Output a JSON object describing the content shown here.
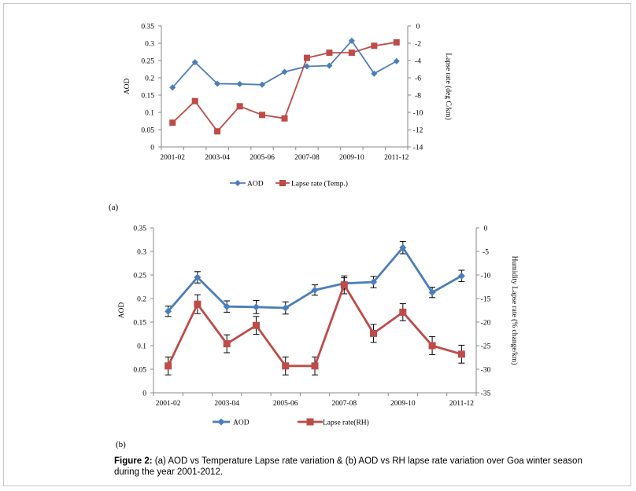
{
  "caption": {
    "label": "Figure 2:",
    "text": " (a) AOD vs Temperature Lapse rate variation & (b) AOD vs RH lapse rate variation over Goa winter season during the year 2001-2012."
  },
  "chart_data": [
    {
      "type": "line",
      "panel_label": "(a)",
      "ylabel": "AOD",
      "y2label": "Lapse rate (deg C/km)",
      "ylim": [
        0,
        0.35
      ],
      "y2lim": [
        -14,
        0
      ],
      "yticks": [
        "0",
        "0.05",
        "0.1",
        "0.15",
        "0.2",
        "0.25",
        "0.3",
        "0.35"
      ],
      "y2ticks": [
        "0",
        "-2",
        "-4",
        "-6",
        "-8",
        "-10",
        "-12",
        "-14"
      ],
      "x": [
        1,
        2,
        3,
        4,
        5,
        6,
        7,
        8,
        9,
        10,
        11
      ],
      "xticklabels": [
        {
          "x": 0.5,
          "label": "2001-02"
        },
        {
          "x": 2.5,
          "label": "2003-04"
        },
        {
          "x": 4.5,
          "label": "2005-06"
        },
        {
          "x": 6.5,
          "label": "2007-08"
        },
        {
          "x": 8.5,
          "label": "2009-10"
        },
        {
          "x": 10.5,
          "label": "2011-12"
        }
      ],
      "series": [
        {
          "name": "AOD",
          "axis": "left",
          "color": "#4a7ebb",
          "marker": "diamond",
          "values": [
            0.172,
            0.245,
            0.183,
            0.182,
            0.18,
            0.217,
            0.233,
            0.235,
            0.307,
            0.212,
            0.248
          ]
        },
        {
          "name": "Lapse rate (Temp.)",
          "axis": "right",
          "color": "#be4b48",
          "marker": "square",
          "values": [
            -11.2,
            -8.7,
            -12.2,
            -9.3,
            -10.3,
            -10.7,
            -3.7,
            -3.1,
            -3.1,
            -2.3,
            -1.9
          ]
        }
      ],
      "legend": "bottom"
    },
    {
      "type": "line",
      "panel_label": "(b)",
      "ylabel": "AOD",
      "y2label": "Humidity Lapse rate (% change/km)",
      "ylim": [
        0,
        0.35
      ],
      "y2lim": [
        -35,
        0
      ],
      "yticks": [
        "0",
        "0.05",
        "0.1",
        "0.15",
        "0.2",
        "0.25",
        "0.3",
        "0.35"
      ],
      "y2ticks": [
        "0",
        "-5",
        "-10",
        "-15",
        "-20",
        "-25",
        "-30",
        "-35"
      ],
      "x": [
        1,
        2,
        3,
        4,
        5,
        6,
        7,
        8,
        9,
        10,
        11
      ],
      "xticklabels": [
        {
          "x": 0.5,
          "label": "2001-02"
        },
        {
          "x": 2.5,
          "label": "2003-04"
        },
        {
          "x": 4.5,
          "label": "2005-06"
        },
        {
          "x": 6.5,
          "label": "2007-08"
        },
        {
          "x": 8.5,
          "label": "2009-10"
        },
        {
          "x": 10.5,
          "label": "2011-12"
        }
      ],
      "series": [
        {
          "name": "AOD",
          "axis": "left",
          "color": "#4a7ebb",
          "marker": "diamond",
          "values": [
            0.173,
            0.245,
            0.183,
            0.182,
            0.18,
            0.218,
            0.232,
            0.235,
            0.308,
            0.213,
            0.248
          ],
          "error": [
            0.011,
            0.012,
            0.012,
            0.014,
            0.013,
            0.011,
            0.012,
            0.012,
            0.013,
            0.011,
            0.012
          ]
        },
        {
          "name": "Lapse rate(RH)",
          "axis": "right",
          "color": "#be4b48",
          "marker": "square",
          "values": [
            -29.3,
            -16.2,
            -24.6,
            -20.7,
            -29.3,
            -29.3,
            -12.1,
            -22.4,
            -17.9,
            -25.0,
            -26.8
          ],
          "error": [
            1.9,
            2.0,
            1.9,
            1.9,
            1.9,
            1.9,
            1.9,
            1.9,
            1.8,
            1.9,
            1.9
          ]
        }
      ],
      "legend": "bottom"
    }
  ]
}
